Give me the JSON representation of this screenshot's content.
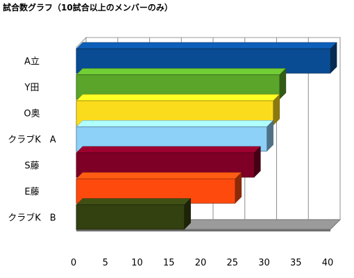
{
  "chart_data": {
    "type": "bar",
    "orientation": "horizontal",
    "title": "試合数グラフ（10試合以上のメンバーのみ）",
    "categories": [
      "A立",
      "Y田",
      "O奥",
      "クラブK　A",
      "S藤",
      "E藤",
      "クラブK　B"
    ],
    "values": [
      40,
      32,
      31,
      30,
      28,
      25,
      17
    ],
    "colors": [
      "#0a4c94",
      "#5aa52a",
      "#fbdc1c",
      "#8dd0f8",
      "#7e0026",
      "#ff4a0e",
      "#334010"
    ],
    "xlim": [
      0,
      40
    ],
    "xticks": [
      "0",
      "5",
      "10",
      "15",
      "20",
      "25",
      "30",
      "35",
      "40"
    ],
    "xlabel": "",
    "ylabel": "",
    "grid": true,
    "style": "3d"
  }
}
